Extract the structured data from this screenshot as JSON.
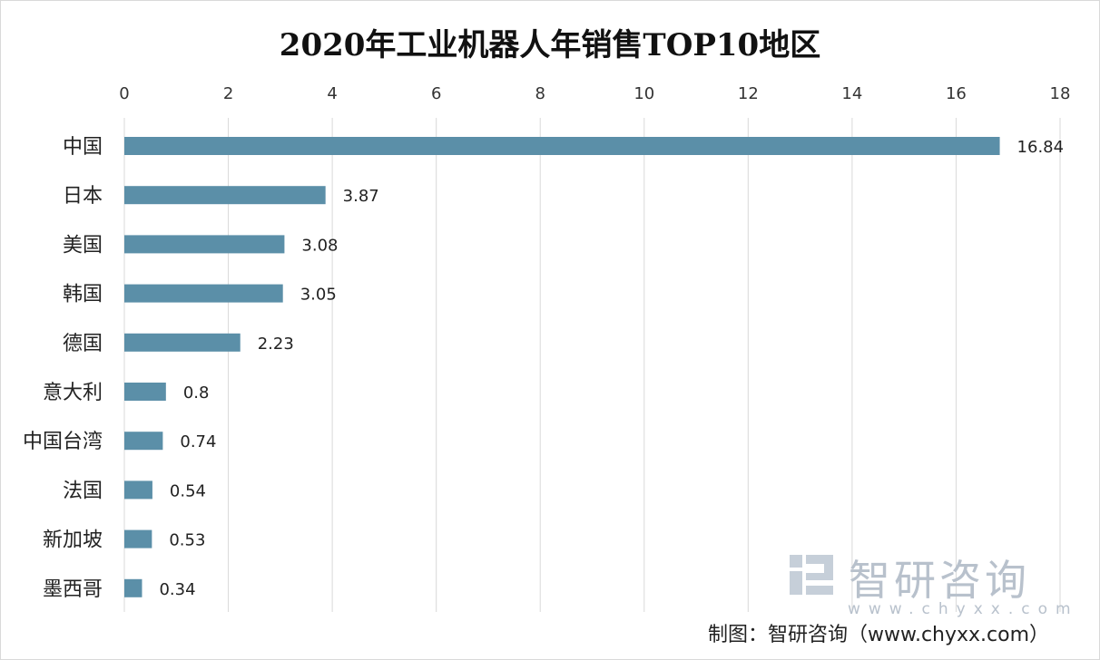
{
  "chart_data": {
    "type": "bar",
    "orientation": "horizontal",
    "title": "2020年工业机器人年销售TOP10地区",
    "categories": [
      "中国",
      "日本",
      "美国",
      "韩国",
      "德国",
      "意大利",
      "中国台湾",
      "法国",
      "新加坡",
      "墨西哥"
    ],
    "values": [
      16.84,
      3.87,
      3.08,
      3.05,
      2.23,
      0.8,
      0.74,
      0.54,
      0.53,
      0.34
    ],
    "value_labels": [
      "16.84",
      "3.87",
      "3.08",
      "3.05",
      "2.23",
      "0.8",
      "0.74",
      "0.54",
      "0.53",
      "0.34"
    ],
    "xlim": [
      0,
      18
    ],
    "x_ticks": [
      0,
      2,
      4,
      6,
      8,
      10,
      12,
      14,
      16,
      18
    ],
    "x_axis_position": "top",
    "grid": true,
    "legend": "none",
    "bar_color": "#5b8fa8",
    "grid_color": "#d9d9d9"
  },
  "watermark": {
    "brand": "智研咨询",
    "url": "www.chyxx.com",
    "color": "#b8c1cc"
  },
  "source_text": "制图：智研咨询（www.chyxx.com）"
}
